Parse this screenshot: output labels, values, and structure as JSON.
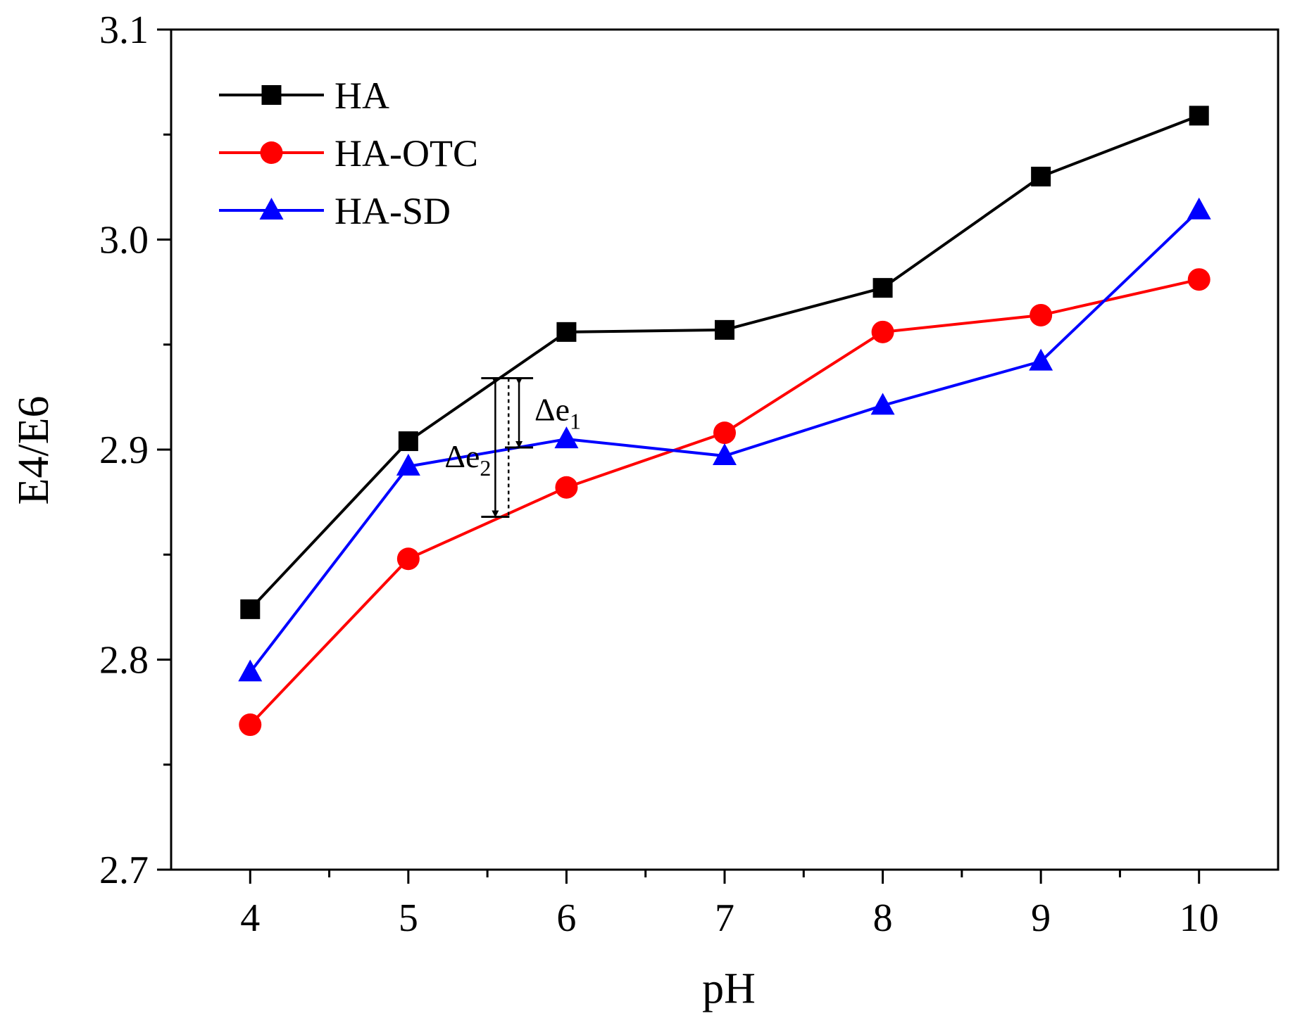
{
  "chart_data": {
    "type": "line",
    "title": "",
    "xlabel": "pH",
    "ylabel": "E4/E6",
    "x": [
      4,
      5,
      6,
      7,
      8,
      9,
      10
    ],
    "xlim": [
      3.5,
      10.5
    ],
    "ylim": [
      2.7,
      3.1
    ],
    "x_ticks": [
      4,
      5,
      6,
      7,
      8,
      9,
      10
    ],
    "x_tick_labels": [
      "4",
      "5",
      "6",
      "7",
      "8",
      "9",
      "10"
    ],
    "y_ticks": [
      2.7,
      2.8,
      2.9,
      3.0,
      3.1
    ],
    "y_tick_labels": [
      "2.7",
      "2.8",
      "2.9",
      "3.0",
      "3.1"
    ],
    "grid": false,
    "legend_position": "top-left",
    "series": [
      {
        "name": "HA",
        "color": "#000000",
        "marker": "square",
        "values": [
          2.824,
          2.904,
          2.956,
          2.957,
          2.977,
          3.03,
          3.059
        ]
      },
      {
        "name": "HA-OTC",
        "color": "#ff0000",
        "marker": "circle",
        "values": [
          2.769,
          2.848,
          2.882,
          2.908,
          2.956,
          2.964,
          2.981
        ]
      },
      {
        "name": "HA-SD",
        "color": "#0000ff",
        "marker": "triangle",
        "values": [
          2.794,
          2.892,
          2.905,
          2.897,
          2.921,
          2.942,
          3.014
        ]
      }
    ],
    "annotations": [
      {
        "label": "Δe",
        "subscript": "1",
        "x": 5.7,
        "y_top": 2.934,
        "y_bottom": 2.901
      },
      {
        "label": "Δe",
        "subscript": "2",
        "x": 5.55,
        "y_top": 2.934,
        "y_bottom": 2.868
      }
    ]
  }
}
